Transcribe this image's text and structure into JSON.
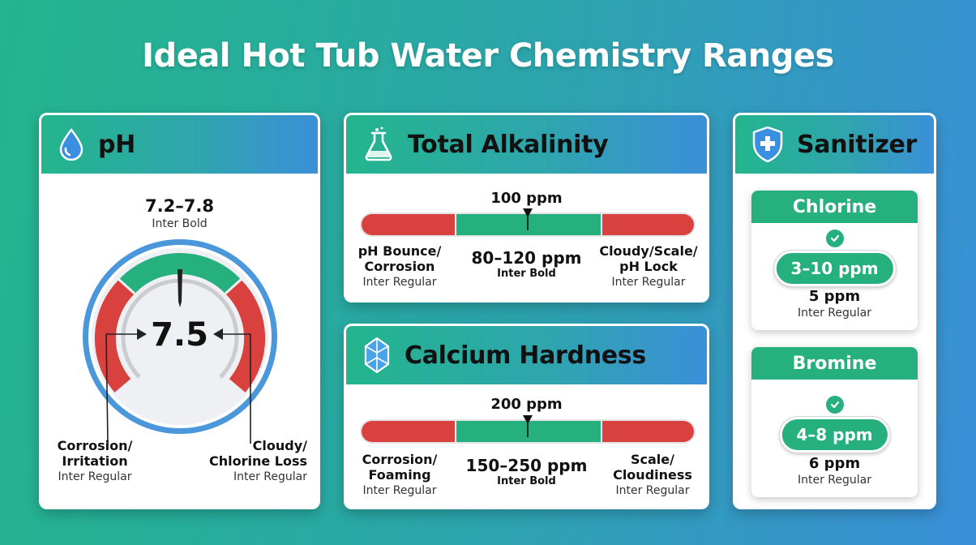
{
  "title": "Ideal Hot Tub Water Chemistry Ranges",
  "ph": {
    "header": "pH",
    "range": "7.2–7.8",
    "range_font": "Inter Bold",
    "value": "7.5",
    "left_label": "Corrosion/\nIrritation",
    "left_font": "Inter Regular",
    "right_label": "Cloudy/\nChlorine Loss",
    "right_font": "Inter Regular"
  },
  "alkalinity": {
    "header": "Total Alkalinity",
    "target": "100 ppm",
    "left_label": "pH Bounce/\nCorrosion",
    "left_font": "Inter Regular",
    "range": "80–120 ppm",
    "range_font": "Inter Bold",
    "right_label": "Cloudy/Scale/\npH Lock",
    "right_font": "Inter Regular"
  },
  "calcium": {
    "header": "Calcium Hardness",
    "target": "200 ppm",
    "left_label": "Corrosion/\nFoaming",
    "left_font": "Inter Regular",
    "range": "150–250 ppm",
    "range_font": "Inter Bold",
    "right_label": "Scale/\nCloudiness",
    "right_font": "Inter Regular"
  },
  "sanitizer": {
    "header": "Sanitizer",
    "chlorine": {
      "name": "Chlorine",
      "range": "3–10 ppm",
      "target": "5 ppm",
      "font": "Inter Regular"
    },
    "bromine": {
      "name": "Bromine",
      "range": "4–8 ppm",
      "target": "6 ppm",
      "font": "Inter Regular"
    }
  },
  "colors": {
    "green": "#26b07e",
    "red": "#d9413f",
    "blue": "#3b90d9"
  }
}
